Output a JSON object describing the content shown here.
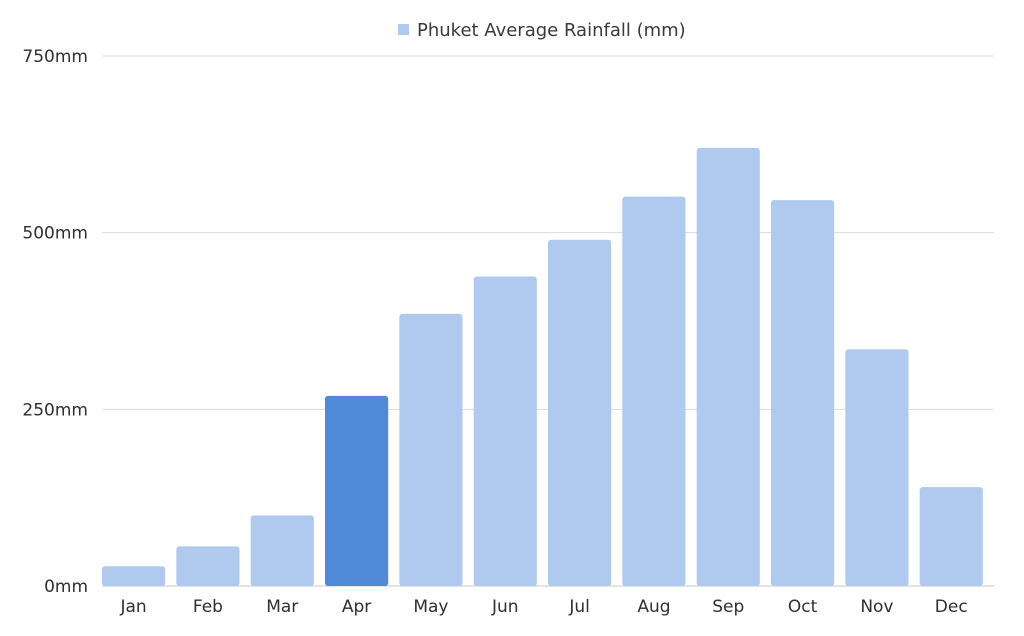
{
  "chart_data": {
    "type": "bar",
    "legend": {
      "label": "Phuket Average Rainfall (mm)",
      "position": "top-center"
    },
    "categories": [
      "Jan",
      "Feb",
      "Mar",
      "Apr",
      "May",
      "Jun",
      "Jul",
      "Aug",
      "Sep",
      "Oct",
      "Nov",
      "Dec"
    ],
    "series": [
      {
        "name": "Phuket Average Rainfall (mm)",
        "values": [
          28,
          56,
          100,
          269,
          385,
          438,
          490,
          551,
          620,
          546,
          335,
          140
        ]
      }
    ],
    "highlight_category": "Apr",
    "ylim": [
      0,
      750
    ],
    "y_ticks": [
      0,
      250,
      500,
      750
    ],
    "y_tick_labels": [
      "0mm",
      "250mm",
      "500mm",
      "750mm"
    ],
    "grid": true,
    "colors": {
      "bar": "#b0caef",
      "bar_highlight": "#4f89d8",
      "grid": "#dcdcdc"
    }
  }
}
